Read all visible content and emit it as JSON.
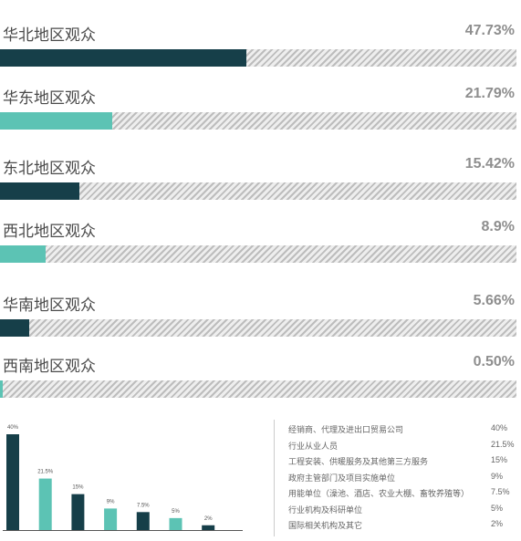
{
  "colors": {
    "dark": "#163f49",
    "teal": "#5cc3b4",
    "track_stripe": "#bdbdbd"
  },
  "regions": [
    {
      "label": "华北地区观众",
      "value_text": "47.73%",
      "value": 47.73,
      "color": "#163f49"
    },
    {
      "label": "华东地区观众",
      "value_text": "21.79%",
      "value": 21.79,
      "color": "#5cc3b4"
    },
    {
      "label": "东北地区观众",
      "value_text": "15.42%",
      "value": 15.42,
      "color": "#163f49"
    },
    {
      "label": "西北地区观众",
      "value_text": "8.9%",
      "value": 8.9,
      "color": "#5cc3b4"
    },
    {
      "label": "华南地区观众",
      "value_text": "5.66%",
      "value": 5.66,
      "color": "#163f49"
    },
    {
      "label": "西南地区观众",
      "value_text": "0.50%",
      "value": 0.5,
      "color": "#5cc3b4"
    }
  ],
  "chart_data": [
    {
      "type": "bar",
      "orientation": "horizontal",
      "categories": [
        "华北地区观众",
        "华东地区观众",
        "东北地区观众",
        "西北地区观众",
        "华南地区观众",
        "西南地区观众"
      ],
      "values": [
        47.73,
        21.79,
        15.42,
        8.9,
        5.66,
        0.5
      ],
      "value_labels": [
        "47.73%",
        "21.79%",
        "15.42%",
        "8.9%",
        "5.66%",
        "0.50%"
      ],
      "xlim": [
        0,
        100
      ]
    },
    {
      "type": "bar",
      "categories": [
        "经销商、代理及进出口贸易公司",
        "行业从业人员",
        "工程安装、供暖服务及其他第三方服务",
        "政府主管部门及项目实施单位",
        "用能单位（澡池、酒店、农业大棚、畜牧养殖等）",
        "行业机构及科研单位",
        "国际相关机构及其它"
      ],
      "values": [
        40,
        21.5,
        15,
        9,
        7.5,
        5,
        2
      ],
      "value_labels": [
        "40%",
        "21.5%",
        "15%",
        "9%",
        "7.5%",
        "5%",
        "2%"
      ],
      "ylim": [
        0,
        40
      ]
    }
  ],
  "legend": [
    {
      "label": "经销商、代理及进出口贸易公司",
      "value": "40%"
    },
    {
      "label": "行业从业人员",
      "value": "21.5%"
    },
    {
      "label": "工程安装、供暖服务及其他第三方服务",
      "value": "15%"
    },
    {
      "label": "政府主管部门及项目实施单位",
      "value": "9%"
    },
    {
      "label": "用能单位（澡池、酒店、农业大棚、畜牧养殖等）",
      "value": "7.5%"
    },
    {
      "label": "行业机构及科研单位",
      "value": "5%"
    },
    {
      "label": "国际相关机构及其它",
      "value": "2%"
    }
  ]
}
